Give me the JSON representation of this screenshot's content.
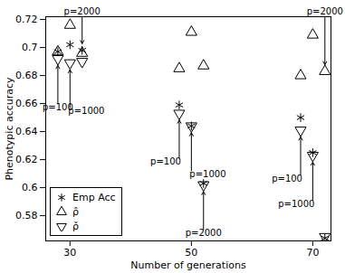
{
  "chart_data": {
    "type": "scatter",
    "x_label": "Number of generations",
    "y_label": "Phenotypic accuracy",
    "xlim": [
      26,
      73
    ],
    "xticks": [
      30,
      50,
      70
    ],
    "ylim": [
      0.562,
      0.722
    ],
    "yticks": [
      0.58,
      0.6,
      0.62,
      0.64,
      0.66,
      0.68,
      0.7,
      0.72
    ],
    "legend": "lower left",
    "x": [
      28,
      30,
      32,
      48,
      50,
      52,
      68,
      70,
      72
    ],
    "series": [
      {
        "name": "Emp Acc",
        "marker": "asterisk",
        "color": "#000000",
        "values": [
          0.697,
          0.702,
          0.698,
          0.659,
          0.644,
          0.603,
          0.65,
          0.625,
          0.564
        ]
      },
      {
        "name": "ρ̂",
        "marker": "triangle",
        "color": "#000000",
        "values": [
          0.697,
          0.716,
          0.696,
          0.685,
          0.711,
          0.687,
          0.68,
          0.709,
          0.683
        ]
      },
      {
        "name": "ρ̌",
        "marker": "triangle-down",
        "color": "#000000",
        "values": [
          0.692,
          0.689,
          0.69,
          0.653,
          0.644,
          0.602,
          0.641,
          0.623,
          0.565
        ]
      }
    ],
    "annotations": [
      {
        "text": "p=100",
        "x": 28,
        "y": 0.692,
        "position": "below"
      },
      {
        "text": "p=1000",
        "x": 30,
        "y": 0.689,
        "position": "below-right"
      },
      {
        "text": "p=2000",
        "x": 32,
        "y": 0.698,
        "position": "above"
      },
      {
        "text": "p=100",
        "x": 48,
        "y": 0.653,
        "position": "below-left"
      },
      {
        "text": "p=1000",
        "x": 50,
        "y": 0.644,
        "position": "below-right"
      },
      {
        "text": "p=2000",
        "x": 52,
        "y": 0.602,
        "position": "below"
      },
      {
        "text": "p=100",
        "x": 68,
        "y": 0.641,
        "position": "below-left"
      },
      {
        "text": "p=1000",
        "x": 70,
        "y": 0.623,
        "position": "below-left"
      },
      {
        "text": "p=2000",
        "x": 72,
        "y": 0.683,
        "position": "above"
      }
    ]
  }
}
